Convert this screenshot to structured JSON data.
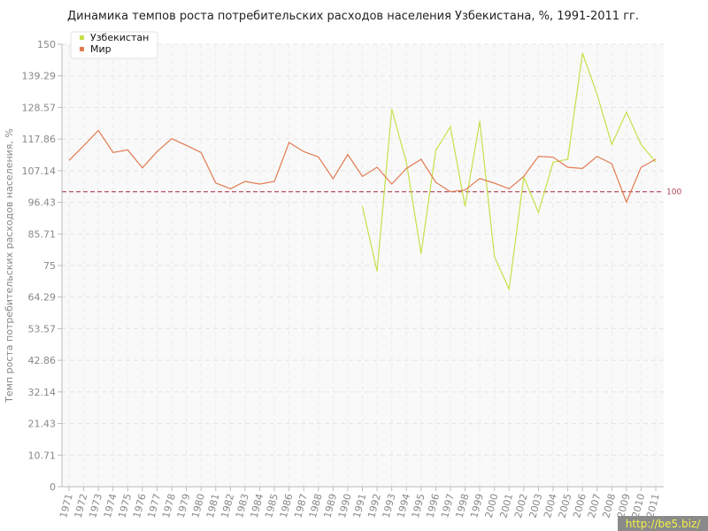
{
  "chart_data": {
    "type": "line",
    "title": "Динамика темпов роста потребительских расходов населения Узбекистана, %, 1991-2011 гг.",
    "xlabel": "",
    "ylabel": "Темп роста потребительских расходов населения, %",
    "ylim": [
      0,
      150
    ],
    "yticks": [
      "0",
      "10.71",
      "21.43",
      "32.14",
      "42.86",
      "53.57",
      "64.29",
      "75",
      "85.71",
      "96.43",
      "107.14",
      "117.86",
      "128.57",
      "139.29",
      "150"
    ],
    "ytick_values": [
      0,
      10.71,
      21.43,
      32.14,
      42.86,
      53.57,
      64.29,
      75,
      85.71,
      96.43,
      107.14,
      117.86,
      128.57,
      139.29,
      150
    ],
    "categories": [
      "1971",
      "1972",
      "1973",
      "1974",
      "1975",
      "1976",
      "1977",
      "1978",
      "1979",
      "1980",
      "1981",
      "1982",
      "1983",
      "1984",
      "1985",
      "1986",
      "1987",
      "1988",
      "1989",
      "1990",
      "1991",
      "1992",
      "1993",
      "1994",
      "1995",
      "1996",
      "1997",
      "1998",
      "1999",
      "2000",
      "2001",
      "2002",
      "2003",
      "2004",
      "2005",
      "2006",
      "2007",
      "2008",
      "2009",
      "2010",
      "2011"
    ],
    "reference_line": {
      "value": 100,
      "label": "100",
      "color": "#b04050"
    },
    "grid": true,
    "legend_position": "top-left",
    "series": [
      {
        "name": "Узбекистан",
        "color": "#c6e04a",
        "values": [
          null,
          null,
          null,
          null,
          null,
          null,
          null,
          null,
          null,
          null,
          null,
          null,
          null,
          null,
          null,
          null,
          null,
          null,
          null,
          null,
          95,
          73,
          128,
          110,
          79,
          114,
          122,
          95,
          124,
          78,
          67,
          105,
          93,
          110,
          111,
          147,
          133,
          116,
          127,
          116,
          110
        ]
      },
      {
        "name": "Мир",
        "color": "#e07b51",
        "values": [
          110.6,
          115.6,
          120.8,
          113.3,
          114.2,
          108.1,
          113.6,
          118,
          115.7,
          113.3,
          103,
          101,
          103.5,
          102.6,
          103.5,
          116.7,
          113.6,
          111.8,
          104.4,
          112.6,
          105.2,
          108.3,
          102.6,
          107.9,
          111,
          103.2,
          100,
          100.6,
          104.5,
          102.9,
          101,
          105.2,
          112,
          111.7,
          108.3,
          107.9,
          112,
          109.5,
          96.5,
          108.3,
          111
        ]
      }
    ]
  },
  "watermark": "http://be5.biz/"
}
